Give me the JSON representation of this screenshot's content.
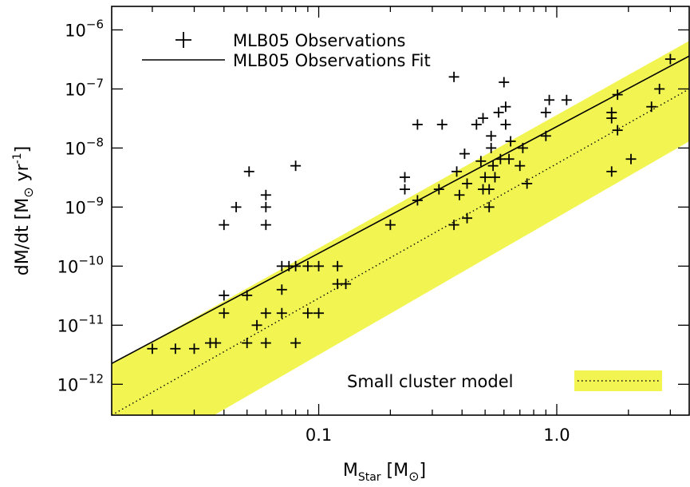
{
  "chart_data": {
    "type": "scatter",
    "xlabel": {
      "main": "M",
      "sub": "Star",
      "unit_open": " [M",
      "unit_sym": "⊙",
      "unit_close": "]"
    },
    "ylabel": {
      "main": "dM/dt [M",
      "sym": "⊙",
      "unit": " yr",
      "exp": "-1",
      "close": "]"
    },
    "x_scale": "log",
    "y_scale": "log",
    "xlim": [
      0.0135,
      3.6
    ],
    "ylim": [
      3e-13,
      2.5e-06
    ],
    "x_tick_labels": [
      "0.1",
      "1.0"
    ],
    "x_tick_values": [
      0.1,
      1.0
    ],
    "y_tick_labels": [
      {
        "value": 1e-12,
        "base": "10",
        "exp": "−12"
      },
      {
        "value": 1e-11,
        "base": "10",
        "exp": "−11"
      },
      {
        "value": 1e-10,
        "base": "10",
        "exp": "−10"
      },
      {
        "value": 1e-09,
        "base": "10",
        "exp": "−9"
      },
      {
        "value": 1e-08,
        "base": "10",
        "exp": "−8"
      },
      {
        "value": 1e-07,
        "base": "10",
        "exp": "−7"
      },
      {
        "value": 1e-06,
        "base": "10",
        "exp": "−6"
      }
    ],
    "grid": false,
    "legend_placement": "top-left",
    "series": [
      {
        "name": "MLB05 Observations",
        "kind": "scatter",
        "marker": "plus",
        "points": [
          [
            0.02,
            4e-12
          ],
          [
            0.025,
            4e-12
          ],
          [
            0.03,
            4e-12
          ],
          [
            0.035,
            5e-12
          ],
          [
            0.037,
            5e-12
          ],
          [
            0.04,
            3.2e-11
          ],
          [
            0.04,
            1.6e-11
          ],
          [
            0.04,
            5e-10
          ],
          [
            0.045,
            1e-09
          ],
          [
            0.05,
            3.2e-11
          ],
          [
            0.05,
            5e-12
          ],
          [
            0.051,
            4e-09
          ],
          [
            0.055,
            1e-11
          ],
          [
            0.06,
            1.6e-11
          ],
          [
            0.06,
            5e-12
          ],
          [
            0.06,
            5e-10
          ],
          [
            0.06,
            1e-09
          ],
          [
            0.06,
            1.6e-09
          ],
          [
            0.07,
            1e-10
          ],
          [
            0.07,
            4e-11
          ],
          [
            0.07,
            1.6e-11
          ],
          [
            0.075,
            1e-10
          ],
          [
            0.08,
            1e-10
          ],
          [
            0.08,
            5e-12
          ],
          [
            0.08,
            5e-09
          ],
          [
            0.09,
            1e-10
          ],
          [
            0.09,
            1.6e-11
          ],
          [
            0.1,
            1e-10
          ],
          [
            0.1,
            1.6e-11
          ],
          [
            0.12,
            1e-10
          ],
          [
            0.12,
            5e-11
          ],
          [
            0.13,
            5e-11
          ],
          [
            0.2,
            5e-10
          ],
          [
            0.23,
            3.2e-09
          ],
          [
            0.23,
            2e-09
          ],
          [
            0.26,
            1.3e-09
          ],
          [
            0.26,
            2.5e-08
          ],
          [
            0.32,
            2e-09
          ],
          [
            0.33,
            2.5e-08
          ],
          [
            0.37,
            5e-10
          ],
          [
            0.37,
            1.6e-07
          ],
          [
            0.38,
            4e-09
          ],
          [
            0.39,
            1.6e-09
          ],
          [
            0.41,
            8e-09
          ],
          [
            0.42,
            6.5e-10
          ],
          [
            0.42,
            2.5e-09
          ],
          [
            0.46,
            2.5e-08
          ],
          [
            0.48,
            6e-09
          ],
          [
            0.49,
            3.2e-08
          ],
          [
            0.49,
            2e-09
          ],
          [
            0.5,
            3.2e-09
          ],
          [
            0.52,
            1e-09
          ],
          [
            0.52,
            2e-09
          ],
          [
            0.53,
            1e-08
          ],
          [
            0.53,
            1.6e-08
          ],
          [
            0.54,
            5e-09
          ],
          [
            0.55,
            3.2e-09
          ],
          [
            0.57,
            4e-08
          ],
          [
            0.58,
            6.5e-09
          ],
          [
            0.6,
            1.3e-07
          ],
          [
            0.61,
            5e-08
          ],
          [
            0.61,
            2.5e-08
          ],
          [
            0.63,
            6.5e-09
          ],
          [
            0.64,
            1.3e-08
          ],
          [
            0.7,
            5e-09
          ],
          [
            0.72,
            1e-08
          ],
          [
            0.75,
            2.5e-09
          ],
          [
            0.9,
            1.6e-08
          ],
          [
            0.9,
            4e-08
          ],
          [
            0.93,
            6.5e-08
          ],
          [
            1.1,
            6.5e-08
          ],
          [
            1.7,
            4e-08
          ],
          [
            1.7,
            3.2e-08
          ],
          [
            1.7,
            4e-09
          ],
          [
            1.8,
            2e-08
          ],
          [
            1.8,
            8e-08
          ],
          [
            2.05,
            6.5e-09
          ],
          [
            2.5,
            5e-08
          ],
          [
            2.7,
            1e-07
          ],
          [
            3.0,
            3.2e-07
          ]
        ]
      },
      {
        "name": "MLB05 Observations Fit",
        "kind": "line",
        "style": "solid",
        "points": [
          [
            0.0135,
            2.25e-12
          ],
          [
            3.6,
            3.6e-07
          ]
        ]
      },
      {
        "name": "Small cluster model",
        "kind": "line_band",
        "style": "dotted",
        "band_color": "#f2f551",
        "points": [
          [
            0.0135,
            3e-13
          ],
          [
            3.6,
            1e-07
          ]
        ],
        "band_upper": [
          [
            0.0135,
            2.2e-12
          ],
          [
            3.6,
            6.5e-07
          ]
        ],
        "band_lower": [
          [
            0.0135,
            3e-14
          ],
          [
            3.6,
            1.3e-08
          ]
        ]
      }
    ],
    "colors": {
      "band": "#f2f551",
      "ink": "#000000",
      "background": "#ffffff"
    }
  }
}
